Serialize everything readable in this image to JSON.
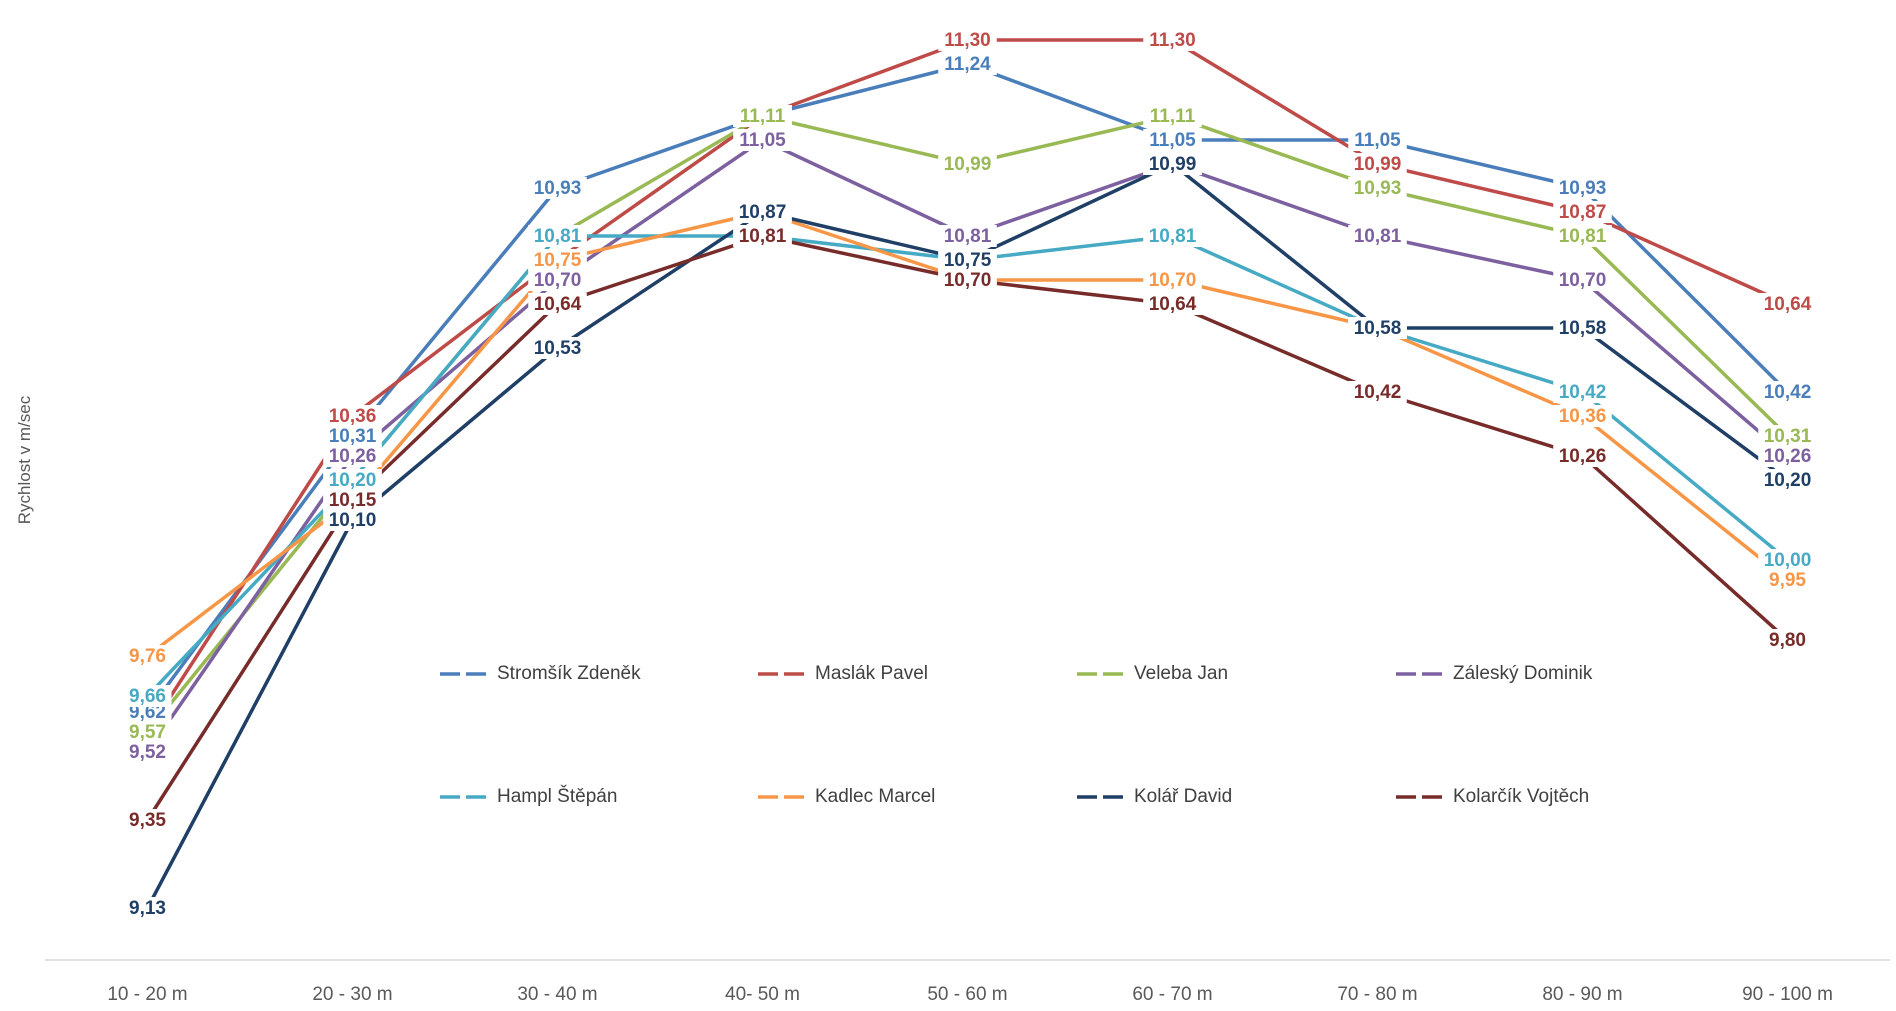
{
  "chart_data": {
    "type": "line",
    "ylabel": "Rychlost v m/sec",
    "xlabel": "",
    "ylim": [
      9.0,
      11.35
    ],
    "grid": false,
    "legend_position": "center",
    "categories": [
      "10 - 20 m",
      "20 - 30 m",
      "30 - 40 m",
      "40- 50 m",
      "50 - 60 m",
      "60 - 70 m",
      "70 - 80 m",
      "80 - 90 m",
      "90 - 100 m"
    ],
    "series": [
      {
        "name": "Stromšík Zdeněk",
        "color": "#4A7EBB",
        "values": [
          9.62,
          10.31,
          10.93,
          11.11,
          11.24,
          11.05,
          11.05,
          10.93,
          10.42
        ]
      },
      {
        "name": "Maslák Pavel",
        "color": "#BE4B48",
        "values": [
          9.57,
          10.36,
          10.75,
          11.11,
          11.3,
          11.3,
          10.99,
          10.87,
          10.64
        ]
      },
      {
        "name": "Veleba Jan",
        "color": "#98B954",
        "values": [
          9.57,
          10.2,
          10.81,
          11.11,
          10.99,
          11.11,
          10.93,
          10.81,
          10.31
        ]
      },
      {
        "name": "Záleský Dominik",
        "color": "#7D60A0",
        "values": [
          9.52,
          10.26,
          10.7,
          11.05,
          10.81,
          10.99,
          10.81,
          10.7,
          10.26
        ]
      },
      {
        "name": "Hampl Štěpán",
        "color": "#46AAC5",
        "values": [
          9.66,
          10.2,
          10.81,
          10.81,
          10.75,
          10.81,
          10.58,
          10.42,
          10.0
        ]
      },
      {
        "name": "Kadlec Marcel",
        "color": "#F79646",
        "values": [
          9.76,
          10.15,
          10.75,
          10.87,
          10.7,
          10.7,
          10.58,
          10.36,
          9.95
        ]
      },
      {
        "name": "Kolář David",
        "color": "#1F3F66",
        "values": [
          9.13,
          10.1,
          10.53,
          10.87,
          10.75,
          10.99,
          10.58,
          10.58,
          10.2
        ]
      },
      {
        "name": "Kolarčík Vojtěch",
        "color": "#772C2A",
        "values": [
          9.35,
          10.15,
          10.64,
          10.81,
          10.7,
          10.64,
          10.42,
          10.26,
          9.8
        ]
      }
    ],
    "data_labels": [
      [
        "9,62",
        "10,31",
        "10,93",
        "11,11",
        "11,24",
        "11,05",
        "11,05",
        "10,93",
        "10,42"
      ],
      [
        "9,57",
        "10,36",
        "10,75",
        "11,11",
        "11,30",
        "11,30",
        "10,99",
        "10,87",
        "10,64"
      ],
      [
        "9,57",
        "10,20",
        "10,81",
        "11,11",
        "10,99",
        "11,11",
        "10,93",
        "10,81",
        "10,31"
      ],
      [
        "9,52",
        "10,26",
        "10,70",
        "11,05",
        "10,81",
        "10,99",
        "10,81",
        "10,70",
        "10,26"
      ],
      [
        "9,66",
        "10,20",
        "10,81",
        "10,81",
        "10,75",
        "10,81",
        "10,58",
        "10,42",
        "10,00"
      ],
      [
        "9,76",
        "10,15",
        "10,75",
        "10,87",
        "10,70",
        "10,70",
        "10,58",
        "10,36",
        "9,95"
      ],
      [
        "9,13",
        "10,10",
        "10,53",
        "10,87",
        "10,75",
        "10,99",
        "10,58",
        "10,58",
        "10,20"
      ],
      [
        "9,35",
        "10,15",
        "10,64",
        "10,81",
        "10,70",
        "10,64",
        "10,42",
        "10,26",
        "9,80"
      ]
    ]
  }
}
